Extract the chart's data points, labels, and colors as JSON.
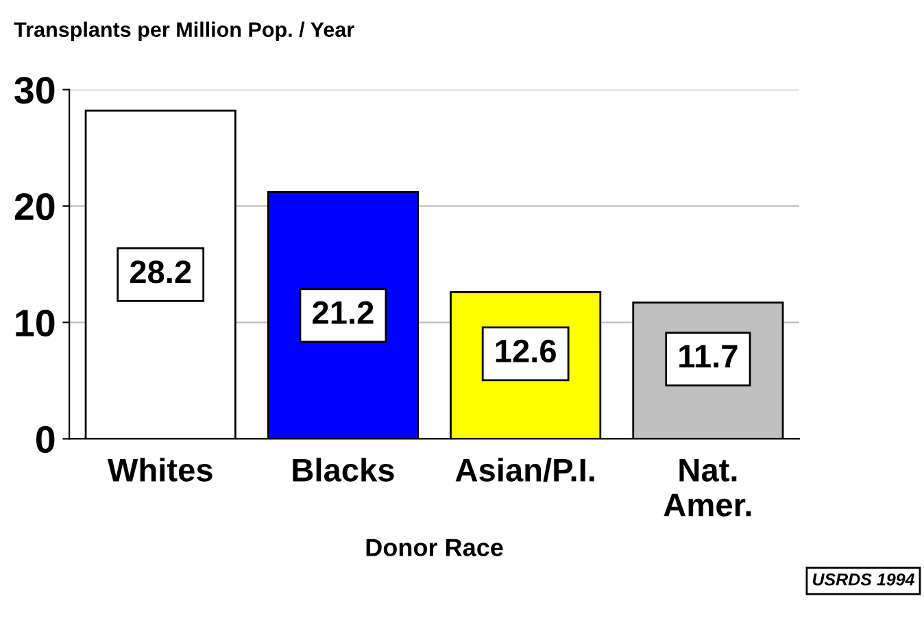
{
  "chart_data": {
    "type": "bar",
    "title": "Transplants per Million Pop. / Year",
    "xlabel": "Donor Race",
    "categories": [
      "Whites",
      "Blacks",
      "Asian/P.I.",
      "Nat.\nAmer."
    ],
    "values": [
      28.2,
      21.2,
      12.6,
      11.7
    ],
    "colors": [
      "#ffffff",
      "#0000ff",
      "#ffff00",
      "#c0c0c0"
    ],
    "ylim": [
      0,
      30
    ],
    "yticks": [
      0,
      10,
      20,
      30
    ],
    "grid": "y",
    "data_labels": true,
    "annotations": [
      "USRDS 1994"
    ]
  }
}
